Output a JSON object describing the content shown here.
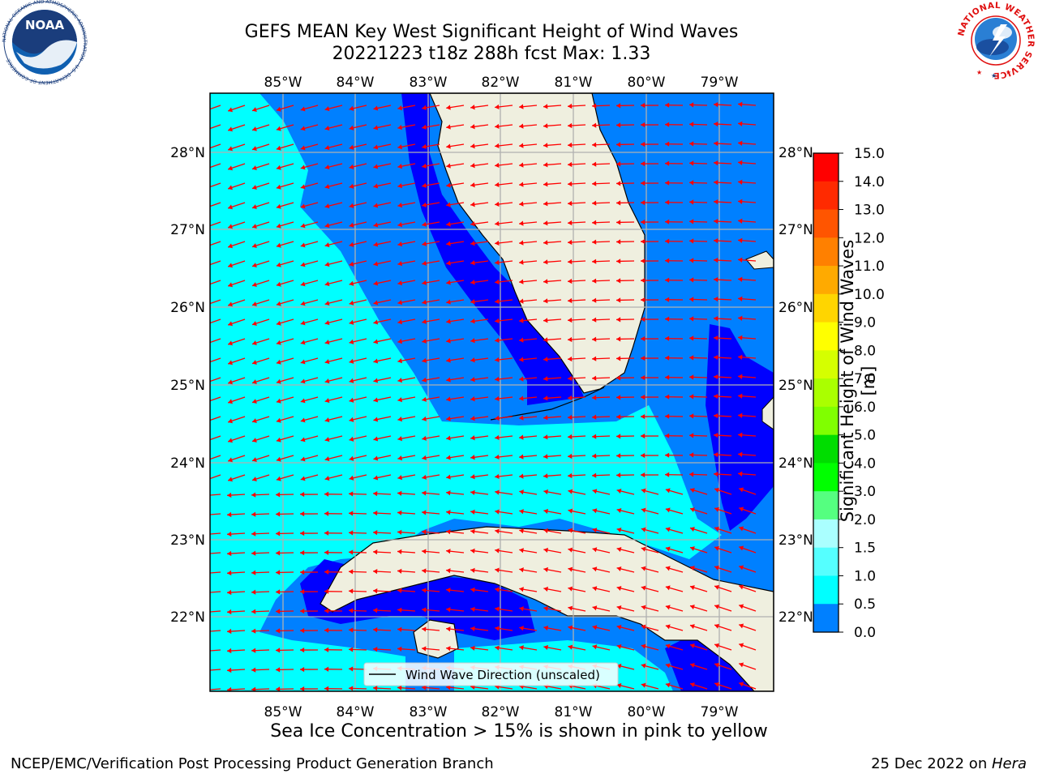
{
  "header": {
    "title_line1": "GEFS MEAN Key West Significant Height of Wind Waves",
    "title_line2": "20221223 t18z 288h fcst   Max: 1.33"
  },
  "map": {
    "lon_ticks": [
      "85°W",
      "84°W",
      "83°W",
      "82°W",
      "81°W",
      "80°W",
      "79°W"
    ],
    "lat_ticks": [
      "28°N",
      "27°N",
      "26°N",
      "25°N",
      "24°N",
      "23°N",
      "22°N"
    ],
    "legend_label": "Wind Wave Direction (unscaled)",
    "arrow_color": "#ff0000",
    "land_color": "#efefdf",
    "grid_color": "#b0b0b0"
  },
  "colorbar": {
    "label": "Significant Height of Wind Waves [m]",
    "ticks": [
      "15.0",
      "14.0",
      "13.0",
      "12.0",
      "11.0",
      "10.0",
      "9.0",
      "8.0",
      "7.0",
      "6.0",
      "5.0",
      "4.0",
      "3.0",
      "2.0",
      "1.5",
      "1.0",
      "0.5",
      "0.0"
    ],
    "colors": [
      "#ff0000",
      "#ff2a00",
      "#ff5500",
      "#ff8000",
      "#ffaa00",
      "#ffd500",
      "#ffff00",
      "#d5ff00",
      "#aaff00",
      "#80ff00",
      "#00dd00",
      "#00ff00",
      "#55ff80",
      "#aaffff",
      "#55ffff",
      "#00ffff",
      "#0080ff",
      "#0000ff"
    ]
  },
  "footer": {
    "subtitle": "Sea Ice Concentration > 15% is shown in pink to yellow",
    "credit": "NCEP/EMC/Verification Post Processing Product Generation Branch",
    "date": "25 Dec 2022 on ",
    "host": "Hera"
  },
  "logos": {
    "noaa_text": "NOAA",
    "noaa_ring": "NATIONAL OCEANIC AND ATMOSPHERIC ADMINISTRATION · U.S. DEPARTMENT OF COMMERCE",
    "nws_ring": "NATIONAL WEATHER SERVICE"
  }
}
